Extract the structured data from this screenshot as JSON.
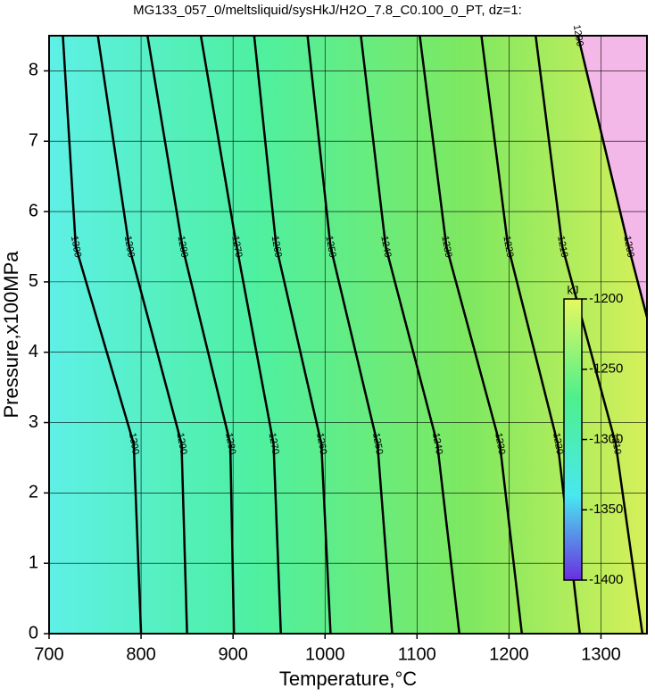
{
  "chart_data": {
    "type": "contour",
    "title": "MG133_057_0/meltsliquid/sysHkJ/H2O_7.8_C0.100_0_PT, dz=1:",
    "x_label": "Temperature,°C",
    "y_label": "Pressure,x100MPa",
    "xlim": [
      700,
      1350
    ],
    "xticks": [
      700,
      800,
      900,
      1000,
      1100,
      1200,
      1300
    ],
    "ylim": [
      0,
      8.5
    ],
    "yticks": [
      0,
      1,
      2,
      3,
      4,
      5,
      6,
      7,
      8
    ],
    "grid": true,
    "contours": [
      {
        "level": 1300,
        "x": [
          800,
          792,
          729,
          715
        ],
        "y": [
          0,
          2.7,
          5.5,
          8.5
        ]
      },
      {
        "level": 1290,
        "x": [
          850,
          844,
          787,
          753
        ],
        "y": [
          0,
          2.7,
          5.5,
          8.5
        ]
      },
      {
        "level": 1280,
        "x": [
          901,
          897,
          845,
          807
        ],
        "y": [
          0,
          2.7,
          5.5,
          8.5
        ]
      },
      {
        "level": 1270,
        "x": [
          952,
          944,
          904,
          865
        ],
        "y": [
          0,
          2.7,
          5.5,
          8.5
        ]
      },
      {
        "level": 1260,
        "x": [
          1006,
          996,
          947,
          923
        ],
        "y": [
          0,
          2.7,
          5.5,
          8.5
        ]
      },
      {
        "level": 1250,
        "x": [
          1073,
          1057,
          1006,
          981
        ],
        "y": [
          0,
          2.7,
          5.5,
          8.5
        ]
      },
      {
        "level": 1240,
        "x": [
          1146,
          1122,
          1066,
          1039
        ],
        "y": [
          0,
          2.7,
          5.5,
          8.5
        ]
      },
      {
        "level": 1230,
        "x": [
          1214,
          1190,
          1132,
          1103
        ],
        "y": [
          0,
          2.7,
          5.5,
          8.5
        ]
      },
      {
        "level": 1220,
        "x": [
          1277,
          1253,
          1199,
          1170
        ],
        "y": [
          0,
          2.7,
          5.5,
          8.5
        ]
      },
      {
        "level": 1210,
        "x": [
          1345,
          1316,
          1258,
          1229
        ],
        "y": [
          0,
          2.7,
          5.5,
          8.5
        ]
      },
      {
        "level": 1200,
        "x": [
          1350,
          1330,
          1275
        ],
        "y": [
          4.5,
          5.5,
          8.5
        ]
      }
    ],
    "colorbar": {
      "label": "kJ",
      "lim": [
        -1400,
        -1200
      ],
      "ticks": [
        -1200,
        -1250,
        -1300,
        -1350,
        -1400
      ]
    }
  }
}
